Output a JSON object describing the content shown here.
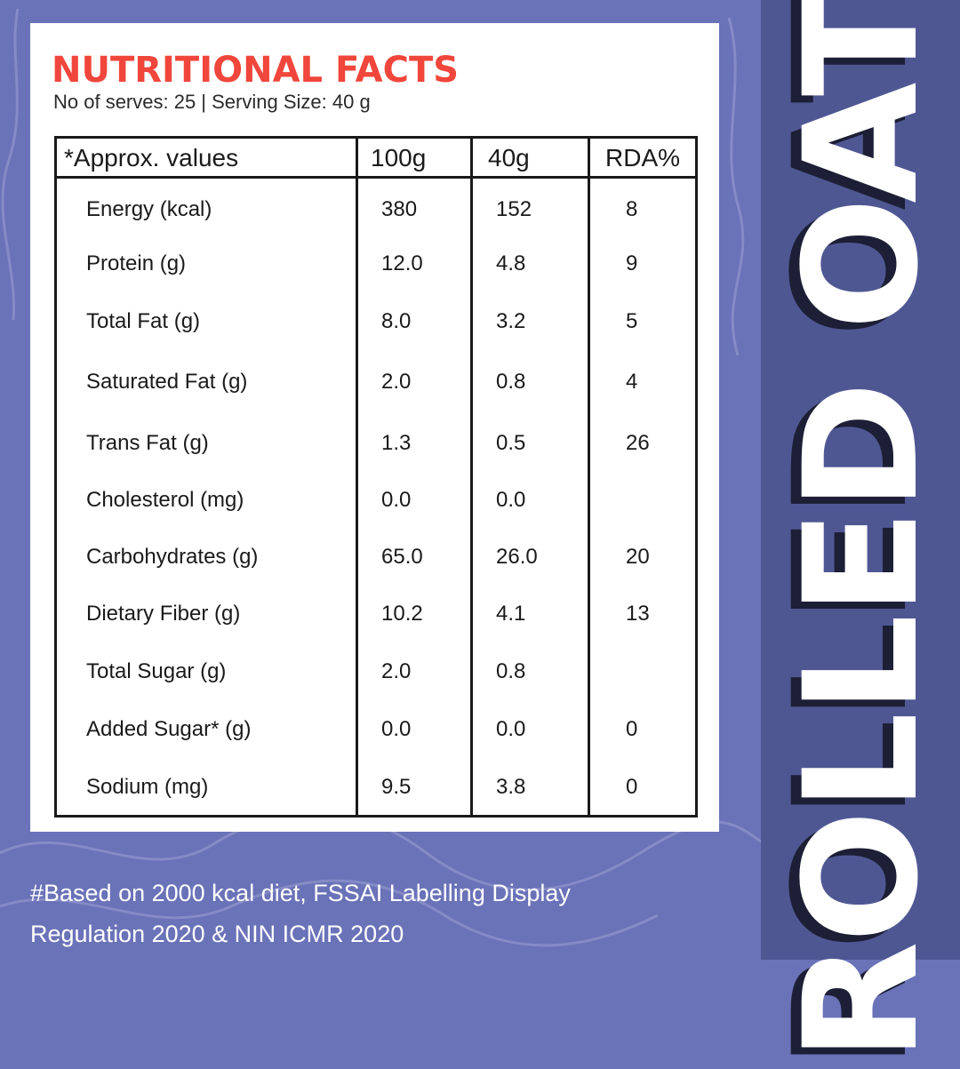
{
  "card": {
    "title": "NUTRITIONAL FACTS",
    "subtitle": "No of serves: 25 | Serving Size: 40 g"
  },
  "table": {
    "headers": [
      "*Approx. values",
      "100g",
      "40g",
      "RDA%"
    ],
    "rows": [
      {
        "label": "Energy (kcal)",
        "per100": "380",
        "per40": "152",
        "rda": "8"
      },
      {
        "label": "Protein (g)",
        "per100": "12.0",
        "per40": "4.8",
        "rda": "9"
      },
      {
        "label": "Total Fat (g)",
        "per100": "8.0",
        "per40": "3.2",
        "rda": "5"
      },
      {
        "label": "Saturated Fat (g)",
        "per100": "2.0",
        "per40": "0.8",
        "rda": "4"
      },
      {
        "label": "Trans Fat (g)",
        "per100": "1.3",
        "per40": "0.5",
        "rda": "26"
      },
      {
        "label": "Cholesterol (mg)",
        "per100": "0.0",
        "per40": "0.0",
        "rda": ""
      },
      {
        "label": "Carbohydrates (g)",
        "per100": "65.0",
        "per40": "26.0",
        "rda": "20"
      },
      {
        "label": "Dietary Fiber (g)",
        "per100": "10.2",
        "per40": "4.1",
        "rda": "13"
      },
      {
        "label": "Total Sugar (g)",
        "per100": "2.0",
        "per40": "0.8",
        "rda": ""
      },
      {
        "label": "Added Sugar* (g)",
        "per100": "0.0",
        "per40": "0.0",
        "rda": "0"
      },
      {
        "label": "Sodium (mg)",
        "per100": "9.5",
        "per40": "3.8",
        "rda": "0"
      }
    ]
  },
  "footnote": {
    "line1": "#Based on 2000 kcal diet, FSSAI Labelling Display",
    "line2": "Regulation 2020 & NIN ICMR 2020"
  },
  "side": {
    "title": "ROLLED OATS"
  },
  "colors": {
    "background": "#6a72b8",
    "side_band": "#4f5793",
    "title_red": "#f0463c",
    "card": "#ffffff"
  }
}
